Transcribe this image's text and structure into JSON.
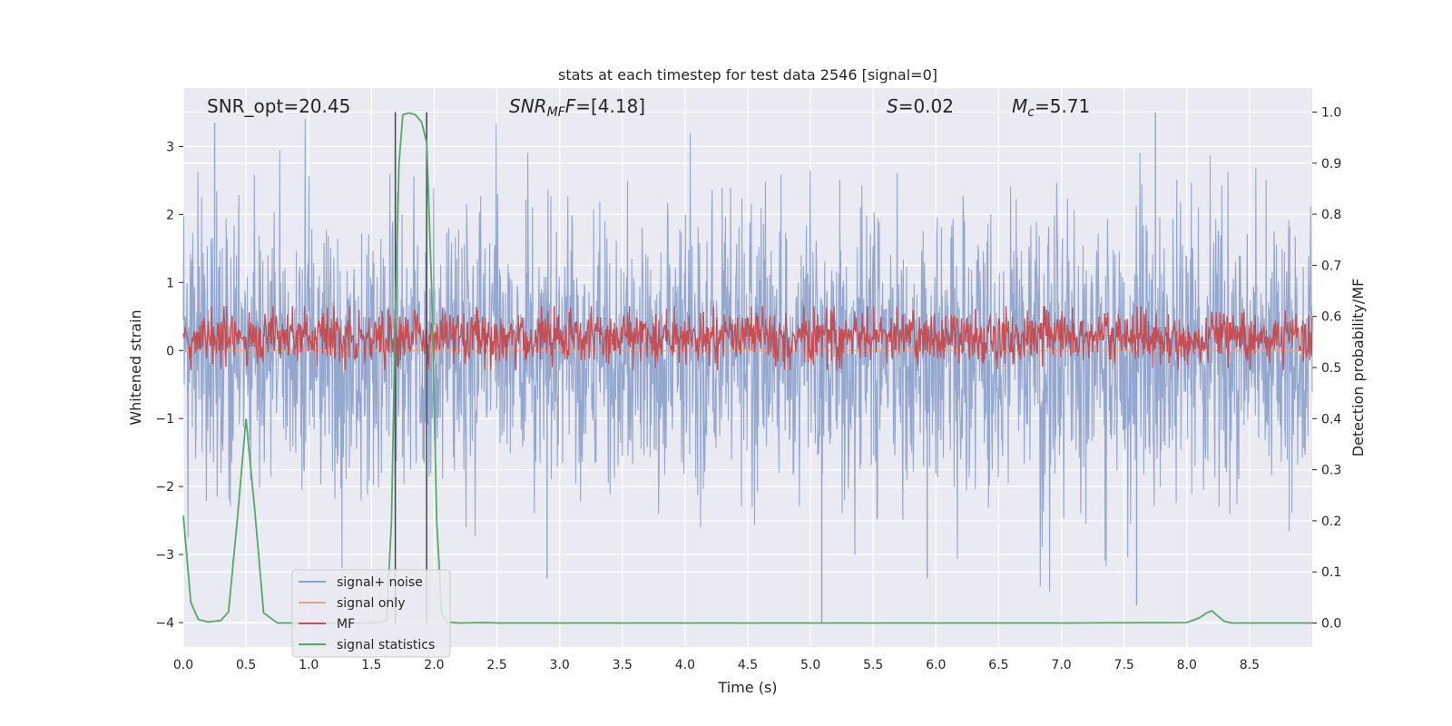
{
  "chart_data": {
    "type": "line",
    "title": "stats at each timestep for test data 2546 [signal=0]",
    "xlabel": "Time (s)",
    "ylabel_left": "Whitened strain",
    "ylabel_right": "Detection probability/MF",
    "xlim": [
      0.0,
      9.0
    ],
    "ylim_left": [
      -4.36,
      3.86
    ],
    "ylim_right": [
      -0.047,
      1.047
    ],
    "x_ticks": [
      0.0,
      0.5,
      1.0,
      1.5,
      2.0,
      2.5,
      3.0,
      3.5,
      4.0,
      4.5,
      5.0,
      5.5,
      6.0,
      6.5,
      7.0,
      7.5,
      8.0,
      8.5
    ],
    "x_tick_labels": [
      "0.0",
      "0.5",
      "1.0",
      "1.5",
      "2.0",
      "2.5",
      "3.0",
      "3.5",
      "4.0",
      "4.5",
      "5.0",
      "5.5",
      "6.0",
      "6.5",
      "7.0",
      "7.5",
      "8.0",
      "8.5"
    ],
    "y_left_ticks": [
      -4,
      -3,
      -2,
      -1,
      0,
      1,
      2,
      3
    ],
    "y_left_tick_labels": [
      "−4",
      "−3",
      "−2",
      "−1",
      "0",
      "1",
      "2",
      "3"
    ],
    "y_right_ticks": [
      0.0,
      0.1,
      0.2,
      0.3,
      0.4,
      0.5,
      0.6,
      0.7,
      0.8,
      0.9,
      1.0
    ],
    "y_right_tick_labels": [
      "0.0",
      "0.1",
      "0.2",
      "0.3",
      "0.4",
      "0.5",
      "0.6",
      "0.7",
      "0.8",
      "0.9",
      "1.0"
    ],
    "grid": true,
    "legend_position": "lower-left",
    "annotations": {
      "snr_opt": "SNR_opt=20.45",
      "snr_mf_main": "SNR",
      "snr_mf_sub": "MF",
      "snr_mf_tail": "=[4.18]",
      "s_main": "S",
      "s_tail": "=0.02",
      "mc_main": "M",
      "mc_sub": "c",
      "mc_tail": "=5.71"
    },
    "vertical_lines": [
      1.69,
      1.94
    ],
    "series": [
      {
        "name": "signal+ noise",
        "axis": "left",
        "color": "#8ea3cc",
        "style": "noise",
        "approx_range": [
          -4.0,
          3.5
        ],
        "outliers": [
          [
            0.25,
            3.35
          ],
          [
            7.75,
            3.5
          ],
          [
            5.09,
            -4.0
          ],
          [
            7.6,
            -3.75
          ],
          [
            2.9,
            -3.35
          ],
          [
            5.93,
            -3.35
          ]
        ]
      },
      {
        "name": "signal only",
        "axis": "left",
        "color": "#e8a487",
        "style": "flat",
        "values": [
          0,
          0
        ]
      },
      {
        "name": "MF",
        "axis": "right",
        "color": "#c44e52",
        "style": "noise",
        "approx_range": [
          0.5,
          0.62
        ]
      },
      {
        "name": "signal statistics",
        "axis": "right",
        "color": "#55a868",
        "style": "line",
        "x": [
          0.0,
          0.06,
          0.12,
          0.2,
          0.3,
          0.36,
          0.43,
          0.5,
          0.57,
          0.64,
          0.75,
          1.0,
          1.25,
          1.5,
          1.62,
          1.66,
          1.69,
          1.72,
          1.75,
          1.8,
          1.85,
          1.9,
          1.94,
          1.98,
          2.02,
          2.06,
          2.1,
          2.2,
          2.4,
          2.5,
          3.0,
          4.0,
          5.0,
          6.0,
          7.0,
          8.0,
          8.1,
          8.16,
          8.2,
          8.24,
          8.3,
          8.36,
          8.5,
          9.0
        ],
        "values": [
          0.21,
          0.04,
          0.007,
          0.002,
          0.005,
          0.022,
          0.2,
          0.4,
          0.22,
          0.02,
          0.0,
          0.0,
          0.0,
          0.0,
          0.003,
          0.2,
          0.6,
          0.9,
          0.995,
          0.998,
          0.995,
          0.98,
          0.94,
          0.65,
          0.2,
          0.02,
          0.002,
          0.0,
          0.001,
          0.0,
          0.0,
          0.0,
          0.0,
          0.0,
          0.0,
          0.001,
          0.01,
          0.02,
          0.024,
          0.015,
          0.003,
          0.0,
          0.0,
          0.0
        ]
      }
    ]
  }
}
